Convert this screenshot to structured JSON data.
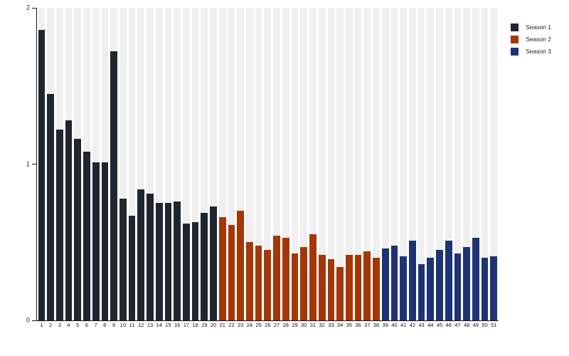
{
  "chart_data": {
    "type": "bar",
    "title": "",
    "xlabel": "",
    "ylabel": "",
    "ylim": [
      0,
      2
    ],
    "yticks": [
      0,
      1,
      2
    ],
    "grid": "vertical-category-bands",
    "band_color": "#efefef",
    "axis_color": "#1a1a1a",
    "legend_position": "top-right-outside",
    "categories": [
      "1",
      "2",
      "3",
      "4",
      "5",
      "6",
      "7",
      "8",
      "9",
      "10",
      "11",
      "12",
      "13",
      "14",
      "15",
      "16",
      "17",
      "18",
      "19",
      "20",
      "21",
      "22",
      "23",
      "24",
      "25",
      "26",
      "27",
      "28",
      "29",
      "30",
      "31",
      "32",
      "33",
      "34",
      "35",
      "36",
      "37",
      "38",
      "39",
      "40",
      "41",
      "42",
      "43",
      "44",
      "45",
      "46",
      "47",
      "48",
      "49",
      "50",
      "51"
    ],
    "series": [
      {
        "name": "Season 1",
        "color": "#20262f",
        "category_range": [
          "1",
          "20"
        ],
        "values": [
          1.86,
          1.45,
          1.22,
          1.28,
          1.16,
          1.08,
          1.01,
          1.01,
          1.72,
          0.78,
          0.67,
          0.84,
          0.81,
          0.75,
          0.75,
          0.76,
          0.62,
          0.63,
          0.69,
          0.73
        ]
      },
      {
        "name": "Season 2",
        "color": "#a33708",
        "category_range": [
          "21",
          "38"
        ],
        "values": [
          0.66,
          0.61,
          0.7,
          0.5,
          0.48,
          0.45,
          0.54,
          0.53,
          0.43,
          0.47,
          0.55,
          0.42,
          0.39,
          0.34,
          0.42,
          0.42,
          0.44,
          0.4
        ]
      },
      {
        "name": "Season 3",
        "color": "#1e3374",
        "category_range": [
          "39",
          "51"
        ],
        "values": [
          0.46,
          0.48,
          0.41,
          0.51,
          0.36,
          0.4,
          0.45,
          0.51,
          0.43,
          0.47,
          0.53,
          0.4,
          0.41
        ]
      }
    ]
  },
  "legend": {
    "items": [
      {
        "label": "Season 1",
        "color": "#20262f"
      },
      {
        "label": "Season 2",
        "color": "#a33708"
      },
      {
        "label": "Season 3",
        "color": "#1e3374"
      }
    ]
  }
}
